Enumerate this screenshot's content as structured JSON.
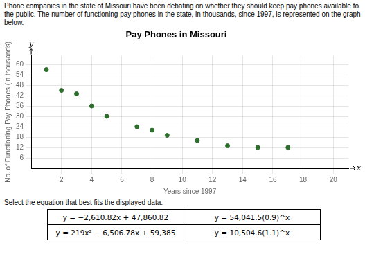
{
  "chart_data": {
    "type": "scatter",
    "title": "Pay Phones in Missouri",
    "subtitle": [
      "Phone companies in the state of Missouri have been debating on whether they should keep pay phones available to the public. The number of",
      "functioning pay phones in the state, in thousands, since 1997, is represented on the graph below."
    ],
    "xlabel": "Years since 1997",
    "ylabel": "No. of Functioning Pay Phones (in thousands)",
    "x": [
      1,
      2,
      3,
      4,
      5,
      7,
      8,
      9,
      11,
      13,
      15,
      17
    ],
    "values": [
      57,
      45,
      43,
      36,
      30,
      24,
      22,
      19,
      16,
      13,
      12,
      12
    ],
    "color": "#2d6e2d",
    "xlim": [
      0,
      21
    ],
    "ylim": [
      0,
      65
    ],
    "xticks": [
      2,
      4,
      6,
      8,
      10,
      12,
      14,
      16,
      18,
      20
    ],
    "yticks": [
      6,
      12,
      18,
      24,
      30,
      36,
      42,
      48,
      54,
      60
    ],
    "grid": true,
    "annotations": [
      "x",
      "y",
      "Select the equation that best fits the displayed data.",
      "y = −2,610.82x + 47,860.82",
      "y = 54,041.5(0.9)^x",
      "y = 219x² − 6,506.78x + 59,385",
      "y = 10,504.6(1.1)^x"
    ]
  }
}
